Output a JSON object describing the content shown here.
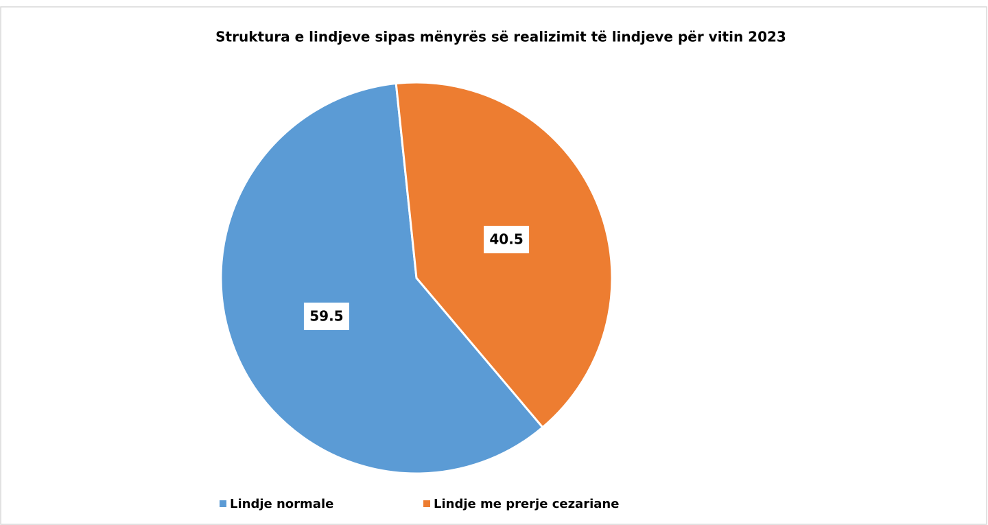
{
  "chart_data": {
    "type": "pie",
    "title": "Struktura e lindjeve sipas mënyrës së realizimit të lindjeve për vitin 2023",
    "categories": [
      "Lindje normale",
      "Lindje me prerje cezariane"
    ],
    "values": [
      59.5,
      40.5
    ],
    "colors": [
      "#5b9bd5",
      "#ed7d31"
    ],
    "legend": "bottom"
  }
}
